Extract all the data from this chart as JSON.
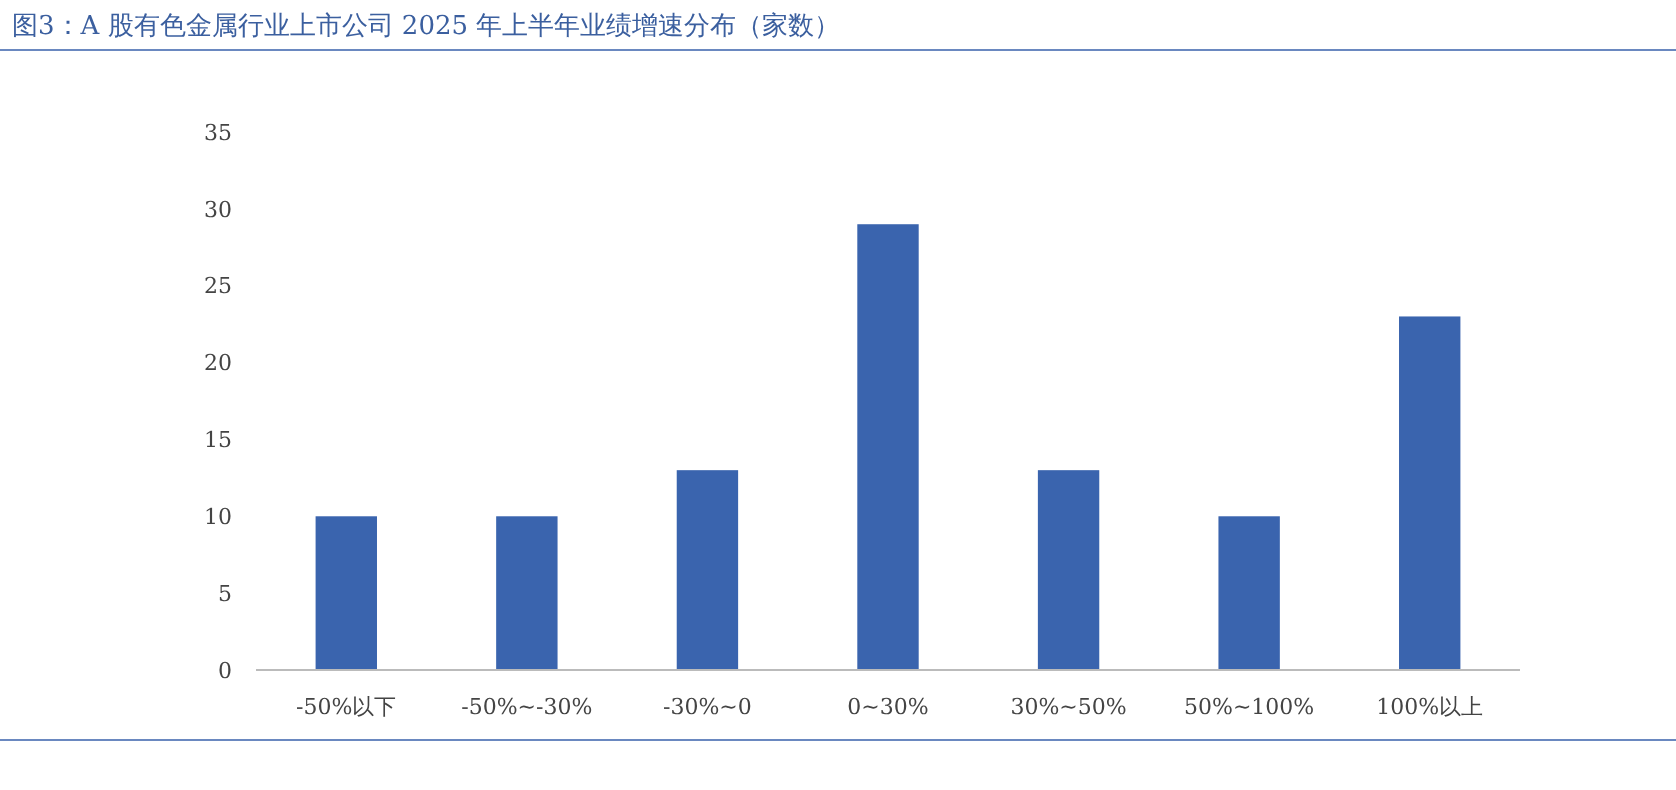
{
  "chart_data": {
    "type": "bar",
    "title": "图3：A 股有色金属行业上市公司 2025 年上半年业绩增速分布（家数）",
    "categories": [
      "-50%以下",
      "-50%~-30%",
      "-30%~0",
      "0~30%",
      "30%~50%",
      "50%~100%",
      "100%以上"
    ],
    "values": [
      10,
      10,
      13,
      29,
      13,
      10,
      23
    ],
    "color": "#3a64ae",
    "ylim": [
      0,
      35
    ],
    "yticks": [
      0,
      5,
      10,
      15,
      20,
      25,
      30,
      35
    ],
    "grid": false
  }
}
